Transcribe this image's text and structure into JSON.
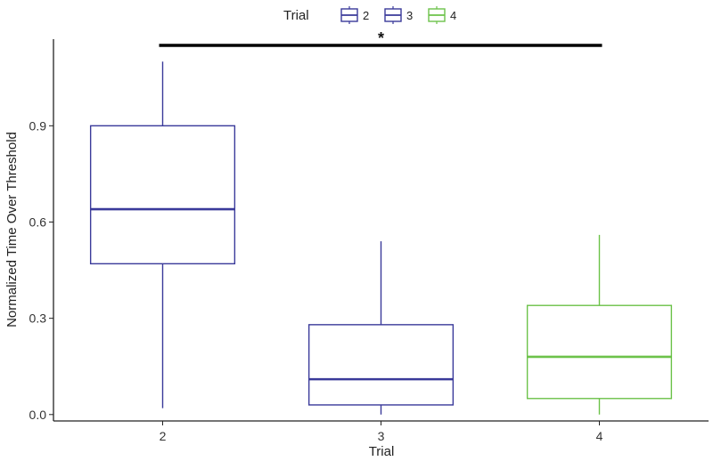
{
  "chart_data": {
    "type": "box",
    "xlabel": "Trial",
    "ylabel": "Normalized Time Over Threshold",
    "categories": [
      "2",
      "3",
      "4"
    ],
    "ylim": [
      -0.02,
      1.17
    ],
    "yticks": [
      0.0,
      0.3,
      0.6,
      0.9
    ],
    "ytick_labels": [
      "0.0",
      "0.3",
      "0.6",
      "0.9"
    ],
    "grid": false,
    "legend": {
      "title": "Trial",
      "placement": "top",
      "entries": [
        "2",
        "3",
        "4"
      ]
    },
    "series": [
      {
        "category": "2",
        "color": "#3a3a9a",
        "min": 0.02,
        "q1": 0.47,
        "median": 0.64,
        "q3": 0.9,
        "max": 1.1
      },
      {
        "category": "3",
        "color": "#3a3a9a",
        "min": 0.0,
        "q1": 0.03,
        "median": 0.11,
        "q3": 0.28,
        "max": 0.54
      },
      {
        "category": "4",
        "color": "#6cc24a",
        "min": 0.0,
        "q1": 0.05,
        "median": 0.18,
        "q3": 0.34,
        "max": 0.56
      }
    ],
    "annotations": [
      {
        "type": "significance-bracket",
        "from": "2",
        "to": "4",
        "label": "*"
      }
    ]
  }
}
